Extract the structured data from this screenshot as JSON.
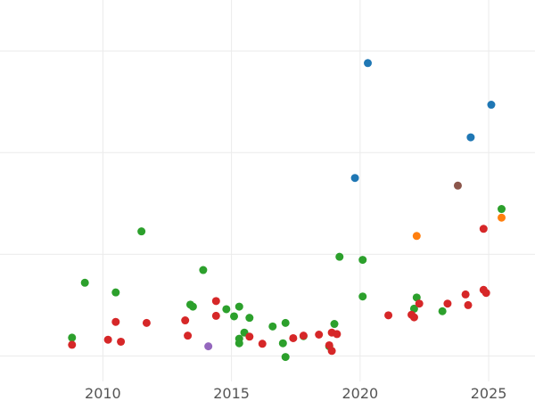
{
  "chart_data": {
    "type": "scatter",
    "title": "",
    "xlabel": "",
    "ylabel": "",
    "xlim": [
      2006,
      2026.8
    ],
    "ylim": [
      0,
      7.5
    ],
    "x_ticks": [
      2010,
      2015,
      2020,
      2025
    ],
    "x_tick_labels": [
      "2010",
      "2015",
      "2020",
      "2025"
    ],
    "y_gridlines": [
      0.5,
      2.5,
      4.5,
      6.5
    ],
    "grid": true,
    "legend": "none",
    "series": [
      {
        "color": "#1f77b4",
        "points": [
          [
            2020.3,
            6.26
          ],
          [
            2025.1,
            5.44
          ],
          [
            2024.3,
            4.8
          ],
          [
            2019.8,
            4.0
          ]
        ]
      },
      {
        "color": "#ff7f0e",
        "points": [
          [
            2022.2,
            2.86
          ],
          [
            2025.5,
            3.22
          ]
        ]
      },
      {
        "color": "#2ca02c",
        "points": [
          [
            2011.5,
            2.95
          ],
          [
            2009.3,
            1.94
          ],
          [
            2010.5,
            1.75
          ],
          [
            2013.9,
            2.19
          ],
          [
            2013.4,
            1.51
          ],
          [
            2013.5,
            1.47
          ],
          [
            2014.8,
            1.42
          ],
          [
            2015.1,
            1.28
          ],
          [
            2015.3,
            1.47
          ],
          [
            2015.7,
            1.25
          ],
          [
            2015.5,
            0.96
          ],
          [
            2015.3,
            0.84
          ],
          [
            2015.3,
            0.75
          ],
          [
            2016.6,
            1.08
          ],
          [
            2017.0,
            0.75
          ],
          [
            2017.1,
            1.15
          ],
          [
            2017.1,
            0.48
          ],
          [
            2017.8,
            0.89
          ],
          [
            2018.8,
            0.69
          ],
          [
            2019.0,
            1.13
          ],
          [
            2019.2,
            2.45
          ],
          [
            2020.1,
            2.39
          ],
          [
            2020.1,
            1.67
          ],
          [
            2008.8,
            0.86
          ],
          [
            2022.1,
            1.43
          ],
          [
            2022.2,
            1.65
          ],
          [
            2023.2,
            1.38
          ],
          [
            2025.5,
            3.39
          ]
        ]
      },
      {
        "color": "#d62728",
        "points": [
          [
            2008.8,
            0.72
          ],
          [
            2010.2,
            0.82
          ],
          [
            2010.5,
            1.17
          ],
          [
            2010.7,
            0.78
          ],
          [
            2011.7,
            1.15
          ],
          [
            2013.2,
            1.2
          ],
          [
            2013.3,
            0.9
          ],
          [
            2014.4,
            1.58
          ],
          [
            2014.4,
            1.29
          ],
          [
            2015.7,
            0.88
          ],
          [
            2016.2,
            0.74
          ],
          [
            2017.4,
            0.85
          ],
          [
            2017.8,
            0.9
          ],
          [
            2018.4,
            0.92
          ],
          [
            2018.8,
            0.71
          ],
          [
            2018.9,
            0.6
          ],
          [
            2018.9,
            0.96
          ],
          [
            2019.1,
            0.93
          ],
          [
            2021.1,
            1.3
          ],
          [
            2022.0,
            1.31
          ],
          [
            2022.1,
            1.26
          ],
          [
            2022.3,
            1.53
          ],
          [
            2023.4,
            1.53
          ],
          [
            2024.1,
            1.71
          ],
          [
            2024.2,
            1.5
          ],
          [
            2024.8,
            1.8
          ],
          [
            2024.9,
            1.74
          ],
          [
            2024.8,
            3.0
          ]
        ]
      },
      {
        "color": "#9467bd",
        "points": [
          [
            2014.1,
            0.69
          ]
        ]
      },
      {
        "color": "#8c564b",
        "points": [
          [
            2023.8,
            3.85
          ]
        ]
      }
    ]
  }
}
